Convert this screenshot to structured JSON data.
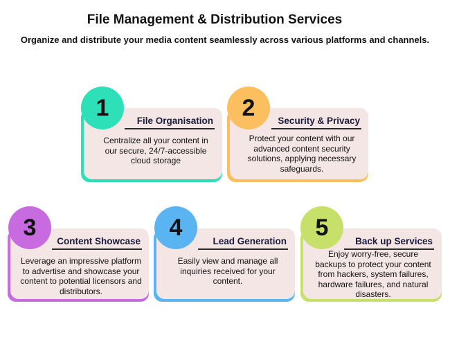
{
  "title": "File Management & Distribution Services",
  "subtitle": "Organize and distribute your media content seamlessly across various platforms and channels.",
  "items": [
    {
      "number": "1",
      "heading": "File Organisation",
      "description": "Centralize all your content in our secure, 24/7-accessible cloud storage",
      "color": "#2ee0b8"
    },
    {
      "number": "2",
      "heading": "Security & Privacy",
      "description": "Protect your content with our advanced content security solutions, applying necessary safeguards.",
      "color": "#fbbf5f"
    },
    {
      "number": "3",
      "heading": "Content Showcase",
      "description": "Leverage an impressive platform to advertise and showcase your content to potential licensors and distributors.",
      "color": "#c96be0"
    },
    {
      "number": "4",
      "heading": "Lead Generation",
      "description": "Easily view and manage all inquiries received for your content.",
      "color": "#5bb4f2"
    },
    {
      "number": "5",
      "heading": "Back up Services",
      "description": "Enjoy worry-free, secure backups to protect your content from hackers, system failures, hardware failures, and natural disasters.",
      "color": "#c6e06a"
    }
  ]
}
